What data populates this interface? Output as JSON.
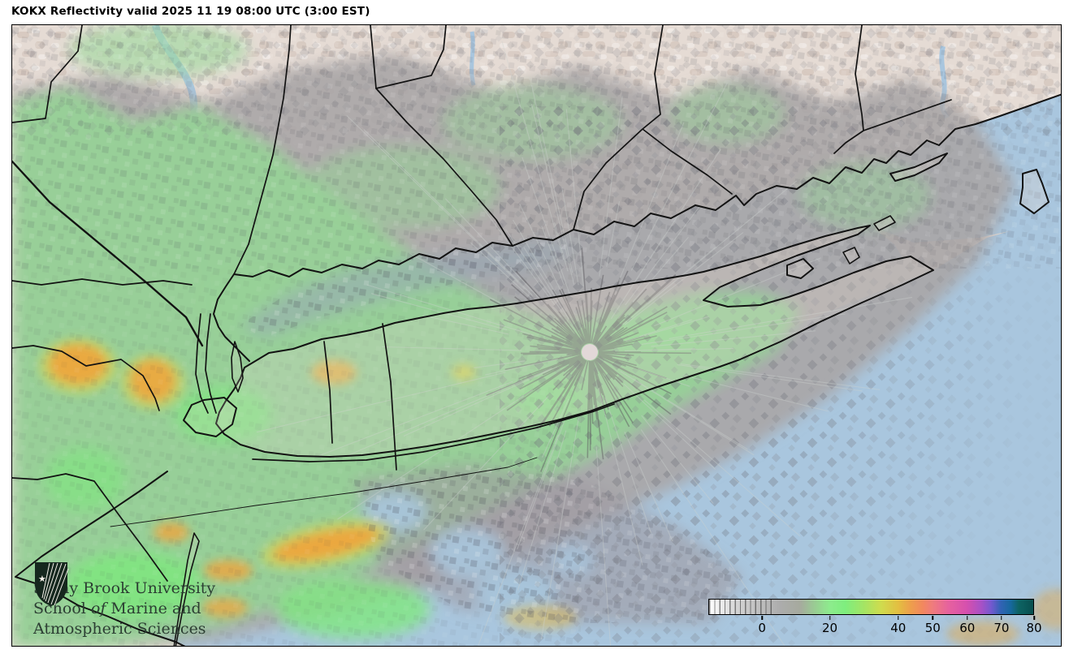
{
  "header": {
    "title": "KOKX Reflectivity valid 2025 11 19 08:00 UTC (3:00 EST)"
  },
  "logo": {
    "line1": "Stony Brook University",
    "line2_prefix": "School ",
    "line2_italic": "of",
    "line2_suffix": " Marine and",
    "line3": "Atmospheric Sciences",
    "shield_color": "#16281e",
    "text_color": "#2c3e33"
  },
  "colorbar": {
    "tick_labels": [
      "0",
      "20",
      "40",
      "50",
      "60",
      "70",
      "80"
    ],
    "tick_positions_pct": [
      16.5,
      37.3,
      58.3,
      68.9,
      79.5,
      90.0,
      100.0
    ],
    "striped_section_end_pct": 20,
    "gradient_stops": [
      {
        "pct": 0,
        "color": "#ffffff"
      },
      {
        "pct": 9,
        "color": "#d2d2d2"
      },
      {
        "pct": 16.5,
        "color": "#bcbcbc"
      },
      {
        "pct": 22,
        "color": "#acacac"
      },
      {
        "pct": 28,
        "color": "#a6aa9e"
      },
      {
        "pct": 33,
        "color": "#98cf92"
      },
      {
        "pct": 37.3,
        "color": "#8dec8d"
      },
      {
        "pct": 42,
        "color": "#7eee7e"
      },
      {
        "pct": 48,
        "color": "#a6e463"
      },
      {
        "pct": 53,
        "color": "#cfdc4e"
      },
      {
        "pct": 58.3,
        "color": "#e3bf41"
      },
      {
        "pct": 62,
        "color": "#eda04b"
      },
      {
        "pct": 66,
        "color": "#f2875f"
      },
      {
        "pct": 69,
        "color": "#ef7b7e"
      },
      {
        "pct": 74,
        "color": "#e6619f"
      },
      {
        "pct": 79.5,
        "color": "#d650ae"
      },
      {
        "pct": 84,
        "color": "#a751c6"
      },
      {
        "pct": 87,
        "color": "#7459cf"
      },
      {
        "pct": 90,
        "color": "#3163b4"
      },
      {
        "pct": 93,
        "color": "#17689e"
      },
      {
        "pct": 95.5,
        "color": "#0d6363"
      },
      {
        "pct": 100,
        "color": "#084f4f"
      }
    ]
  },
  "map": {
    "radar_site": "KOKX",
    "colors": {
      "land": "#e5dbd4",
      "water": "#a9c6de",
      "echo_gray": "#a9a5a6",
      "echo_green": "#93d893",
      "echo_bright_green": "#7fe87f",
      "echo_yellow": "#d8d44e",
      "echo_orange": "#f0a43c",
      "boundary": "#121212",
      "radar_dot": "#e2d8d8"
    }
  }
}
